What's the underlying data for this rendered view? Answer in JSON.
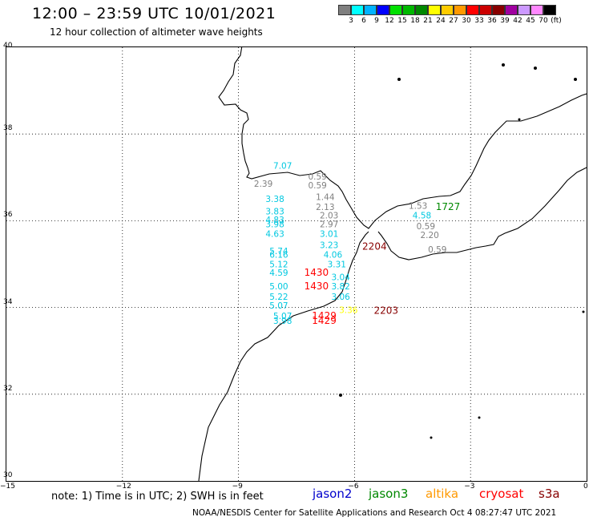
{
  "header": {
    "title": "12:00 – 23:59 UTC 10/01/2021",
    "subtitle": "12 hour collection of altimeter wave heights"
  },
  "color_scale": {
    "labels": [
      "3",
      "6",
      "9",
      "12",
      "15",
      "18",
      "21",
      "24",
      "27",
      "30",
      "33",
      "36",
      "39",
      "42",
      "45",
      "70",
      "(ft)"
    ],
    "colors": [
      "#7f7f7f",
      "#00ffff",
      "#00b2ff",
      "#0000ff",
      "#00e000",
      "#00b800",
      "#008800",
      "#ffff00",
      "#ffcc00",
      "#ff9900",
      "#ff0000",
      "#cc0000",
      "#880000",
      "#a000a0",
      "#cc99ff",
      "#ff88ff",
      "#000000"
    ]
  },
  "axes": {
    "lat_labels": [
      "40",
      "38",
      "36",
      "34",
      "32",
      "30"
    ],
    "lon_labels": [
      "−15",
      "−12",
      "−9",
      "−6",
      "−3",
      "0"
    ]
  },
  "observations": [
    {
      "text": "7.07",
      "lon": -8.1,
      "lat": 37.2,
      "color": "#00c8e0"
    },
    {
      "text": "0.59",
      "lon": -7.2,
      "lat": 36.95,
      "color": "#808080"
    },
    {
      "text": "2.39",
      "lon": -8.6,
      "lat": 36.78,
      "color": "#808080"
    },
    {
      "text": "0.59",
      "lon": -7.2,
      "lat": 36.75,
      "color": "#808080"
    },
    {
      "text": "1.44",
      "lon": -7.0,
      "lat": 36.48,
      "color": "#808080"
    },
    {
      "text": "3.38",
      "lon": -8.3,
      "lat": 36.43,
      "color": "#00c8e0"
    },
    {
      "text": "2.13",
      "lon": -7.0,
      "lat": 36.25,
      "color": "#808080"
    },
    {
      "text": "1.53",
      "lon": -4.6,
      "lat": 36.28,
      "color": "#808080"
    },
    {
      "text": "1727",
      "lon": -3.9,
      "lat": 36.25,
      "color": "#008800"
    },
    {
      "text": "3.83",
      "lon": -8.3,
      "lat": 36.15,
      "color": "#00c8e0"
    },
    {
      "text": "2.03",
      "lon": -6.9,
      "lat": 36.05,
      "color": "#808080"
    },
    {
      "text": "4.58",
      "lon": -4.5,
      "lat": 36.05,
      "color": "#00c8e0"
    },
    {
      "text": "4.83",
      "lon": -8.3,
      "lat": 35.95,
      "color": "#00c8e0"
    },
    {
      "text": "3.98",
      "lon": -8.3,
      "lat": 35.85,
      "color": "#00c8e0"
    },
    {
      "text": "2.97",
      "lon": -6.9,
      "lat": 35.85,
      "color": "#808080"
    },
    {
      "text": "0.59",
      "lon": -4.4,
      "lat": 35.8,
      "color": "#808080"
    },
    {
      "text": "4.63",
      "lon": -8.3,
      "lat": 35.63,
      "color": "#00c8e0"
    },
    {
      "text": "3.01",
      "lon": -6.9,
      "lat": 35.63,
      "color": "#00c8e0"
    },
    {
      "text": "2.20",
      "lon": -4.3,
      "lat": 35.6,
      "color": "#808080"
    },
    {
      "text": "3.23",
      "lon": -6.9,
      "lat": 35.37,
      "color": "#00c8e0"
    },
    {
      "text": "2204",
      "lon": -5.8,
      "lat": 35.33,
      "color": "#880000"
    },
    {
      "text": "0.59",
      "lon": -4.1,
      "lat": 35.27,
      "color": "#808080"
    },
    {
      "text": "5.74",
      "lon": -8.2,
      "lat": 35.23,
      "color": "#00c8e0"
    },
    {
      "text": "6.16",
      "lon": -8.2,
      "lat": 35.15,
      "color": "#00c8e0"
    },
    {
      "text": "4.06",
      "lon": -6.8,
      "lat": 35.15,
      "color": "#00c8e0"
    },
    {
      "text": "5.12",
      "lon": -8.2,
      "lat": 34.93,
      "color": "#00c8e0"
    },
    {
      "text": "3.31",
      "lon": -6.7,
      "lat": 34.93,
      "color": "#00c8e0"
    },
    {
      "text": "4.59",
      "lon": -8.2,
      "lat": 34.73,
      "color": "#00c8e0"
    },
    {
      "text": "1430",
      "lon": -7.3,
      "lat": 34.73,
      "color": "#ff0000"
    },
    {
      "text": "3.04",
      "lon": -6.6,
      "lat": 34.63,
      "color": "#00c8e0"
    },
    {
      "text": "5.00",
      "lon": -8.2,
      "lat": 34.42,
      "color": "#00c8e0"
    },
    {
      "text": "1430",
      "lon": -7.3,
      "lat": 34.42,
      "color": "#ff0000"
    },
    {
      "text": "3.82",
      "lon": -6.6,
      "lat": 34.42,
      "color": "#00c8e0"
    },
    {
      "text": "5.22",
      "lon": -8.2,
      "lat": 34.18,
      "color": "#00c8e0"
    },
    {
      "text": "3.06",
      "lon": -6.6,
      "lat": 34.18,
      "color": "#00c8e0"
    },
    {
      "text": "5.07",
      "lon": -8.2,
      "lat": 33.97,
      "color": "#00c8e0"
    },
    {
      "text": "3.36",
      "lon": -6.4,
      "lat": 33.87,
      "color": "#ffff00"
    },
    {
      "text": "2203",
      "lon": -5.5,
      "lat": 33.85,
      "color": "#880000"
    },
    {
      "text": "5.07",
      "lon": -8.1,
      "lat": 33.73,
      "color": "#00c8e0"
    },
    {
      "text": "1429",
      "lon": -7.1,
      "lat": 33.73,
      "color": "#ff0000"
    },
    {
      "text": "3.98",
      "lon": -8.1,
      "lat": 33.62,
      "color": "#00c8e0"
    },
    {
      "text": "1429",
      "lon": -7.1,
      "lat": 33.62,
      "color": "#ff0000"
    }
  ],
  "note": "note: 1) Time is in UTC; 2) SWH is in feet",
  "satellites": [
    {
      "name": "jason2",
      "color": "#0000cc"
    },
    {
      "name": "jason3",
      "color": "#008800"
    },
    {
      "name": "altika",
      "color": "#ff9900"
    },
    {
      "name": "cryosat",
      "color": "#ff0000"
    },
    {
      "name": "s3a",
      "color": "#880000"
    }
  ],
  "footer": "NOAA/NESDIS Center for Satellite Applications and Research   Oct  4 08:27:47 UTC 2021"
}
